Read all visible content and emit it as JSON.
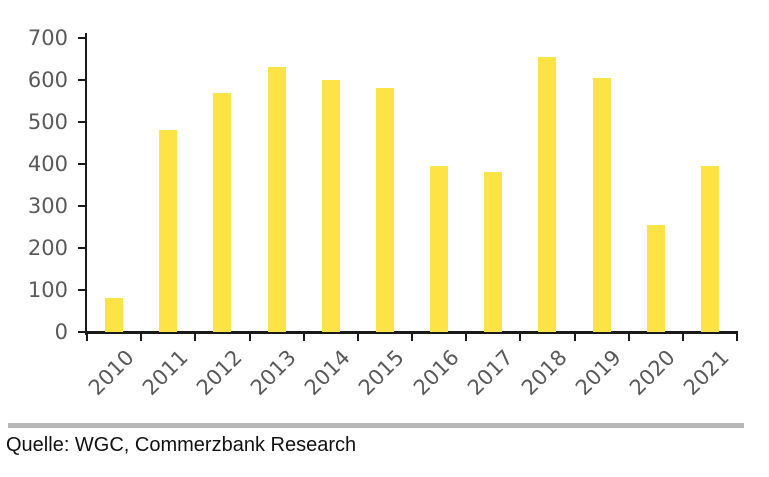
{
  "chart_data": {
    "type": "bar",
    "title": "",
    "xlabel": "",
    "ylabel": "",
    "categories": [
      "2010",
      "2011",
      "2012",
      "2013",
      "2014",
      "2015",
      "2016",
      "2017",
      "2018",
      "2019",
      "2020",
      "2021"
    ],
    "values": [
      80,
      480,
      570,
      630,
      600,
      580,
      395,
      380,
      655,
      605,
      255,
      395
    ],
    "ylim": [
      0,
      700
    ],
    "yticks": [
      0,
      100,
      200,
      300,
      400,
      500,
      600,
      700
    ],
    "grid": false,
    "legend": "none",
    "bar_width_ratio": 0.33,
    "colors": {
      "bar": "#FDE345",
      "axis": "#1A1A1A",
      "tick_label": "#595959"
    }
  },
  "footer": {
    "source_label": "Quelle: WGC, Commerzbank Research",
    "separator_color": "#B7B7B7",
    "text_color": "#111111"
  }
}
